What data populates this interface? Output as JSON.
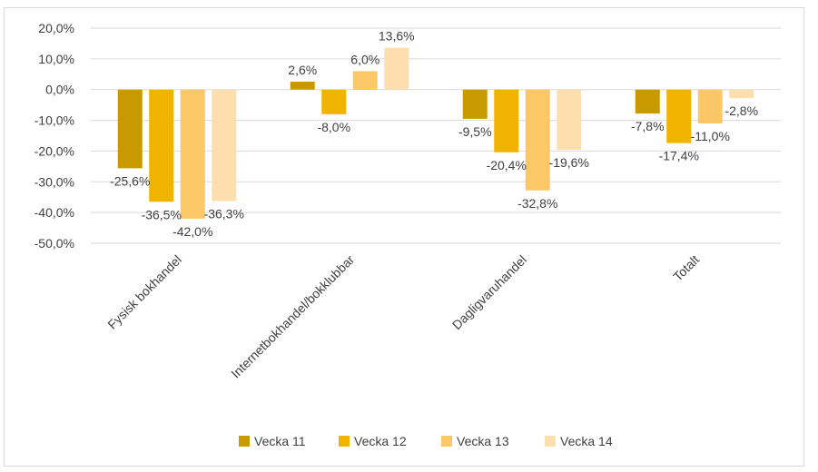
{
  "chart_data": {
    "type": "bar",
    "categories": [
      "Fysisk bokhandel",
      "Internetbokhandel/bokklubbar",
      "Dagligvaruhandel",
      "Totalt"
    ],
    "series": [
      {
        "name": "Vecka 11",
        "values": [
          -25.6,
          2.6,
          -9.5,
          -7.8
        ],
        "labels": [
          "-25,6%",
          "2,6%",
          "-9,5%",
          "-7,8%"
        ],
        "color": "#c99a00"
      },
      {
        "name": "Vecka 12",
        "values": [
          -36.5,
          -8.0,
          -20.4,
          -17.4
        ],
        "labels": [
          "-36,5%",
          "-8,0%",
          "-20,4%",
          "-17,4%"
        ],
        "color": "#f0b400"
      },
      {
        "name": "Vecka 13",
        "values": [
          -42.0,
          6.0,
          -32.8,
          -11.0
        ],
        "labels": [
          "-42,0%",
          "6,0%",
          "-32,8%",
          "-11,0%"
        ],
        "color": "#fcc766"
      },
      {
        "name": "Vecka 14",
        "values": [
          -36.3,
          13.6,
          -19.6,
          -2.8
        ],
        "labels": [
          "-36,3%",
          "13,6%",
          "-19,6%",
          "-2,8%"
        ],
        "color": "#fddfae"
      }
    ],
    "ylim": [
      -50,
      20
    ],
    "yticks": [
      20,
      10,
      0,
      -10,
      -20,
      -30,
      -40,
      -50
    ],
    "ytick_labels": [
      "20,0%",
      "10,0%",
      "0,0%",
      "-10,0%",
      "-20,0%",
      "-30,0%",
      "-40,0%",
      "-50,0%"
    ],
    "grid": true,
    "legend": "bottom"
  }
}
